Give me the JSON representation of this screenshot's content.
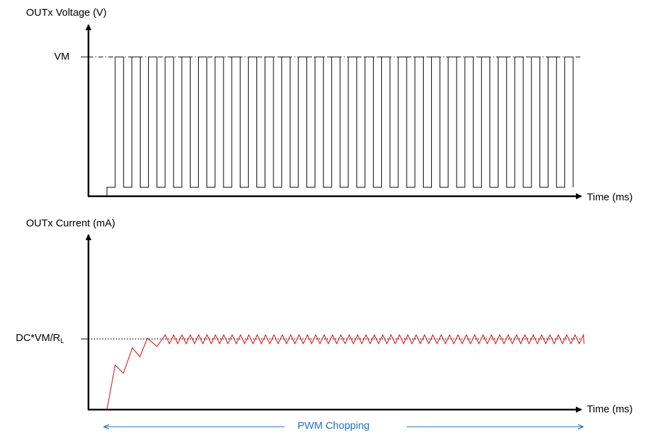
{
  "voltage_chart": {
    "ylabel": "OUTx Voltage (V)",
    "xlabel": "Time (ms)",
    "level_label": "VM",
    "pulse_count": 28
  },
  "current_chart": {
    "ylabel": "OUTx Current (mA)",
    "xlabel": "Time (ms)",
    "level_label_main": "DC*VM/R",
    "level_label_sub": "L",
    "waveform_color": "#e00000"
  },
  "annotation": {
    "label": "PWM Chopping",
    "color": "#1f73c4"
  }
}
